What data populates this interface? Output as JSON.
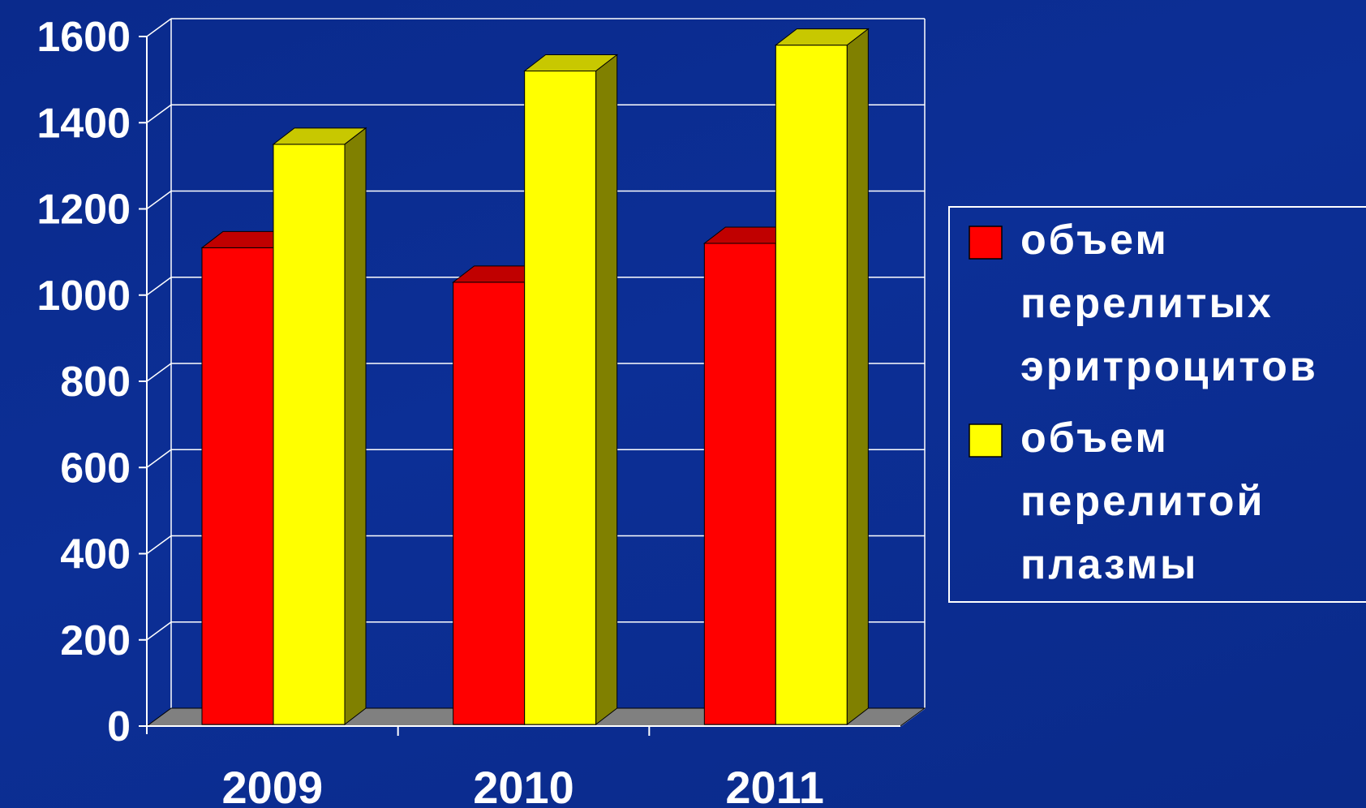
{
  "chart_data": {
    "type": "bar",
    "categories": [
      "2009",
      "2010",
      "2011"
    ],
    "series": [
      {
        "name": "объем перелитых эритроцитов",
        "legend_lines": [
          "объем",
          "перелитых",
          "эритроцитов"
        ],
        "values": [
          1110,
          1030,
          1120
        ],
        "color": "#ff0000",
        "top_color": "#c00000",
        "side_color": "#a00000"
      },
      {
        "name": "объем перелитой плазмы",
        "legend_lines": [
          "объем",
          "перелитой",
          "плазмы"
        ],
        "values": [
          1350,
          1520,
          1580
        ],
        "color": "#ffff00",
        "top_color": "#c8c800",
        "side_color": "#808000"
      }
    ],
    "yticks": [
      "0",
      "200",
      "400",
      "600",
      "800",
      "1000",
      "1200",
      "1400",
      "1600"
    ],
    "ylim": [
      0,
      1600
    ],
    "grid": true,
    "legend_position": "right",
    "colors": {
      "background": "#0c2f96",
      "grid": "#ffffff",
      "floor": "#808080",
      "text": "#ffffff"
    }
  }
}
